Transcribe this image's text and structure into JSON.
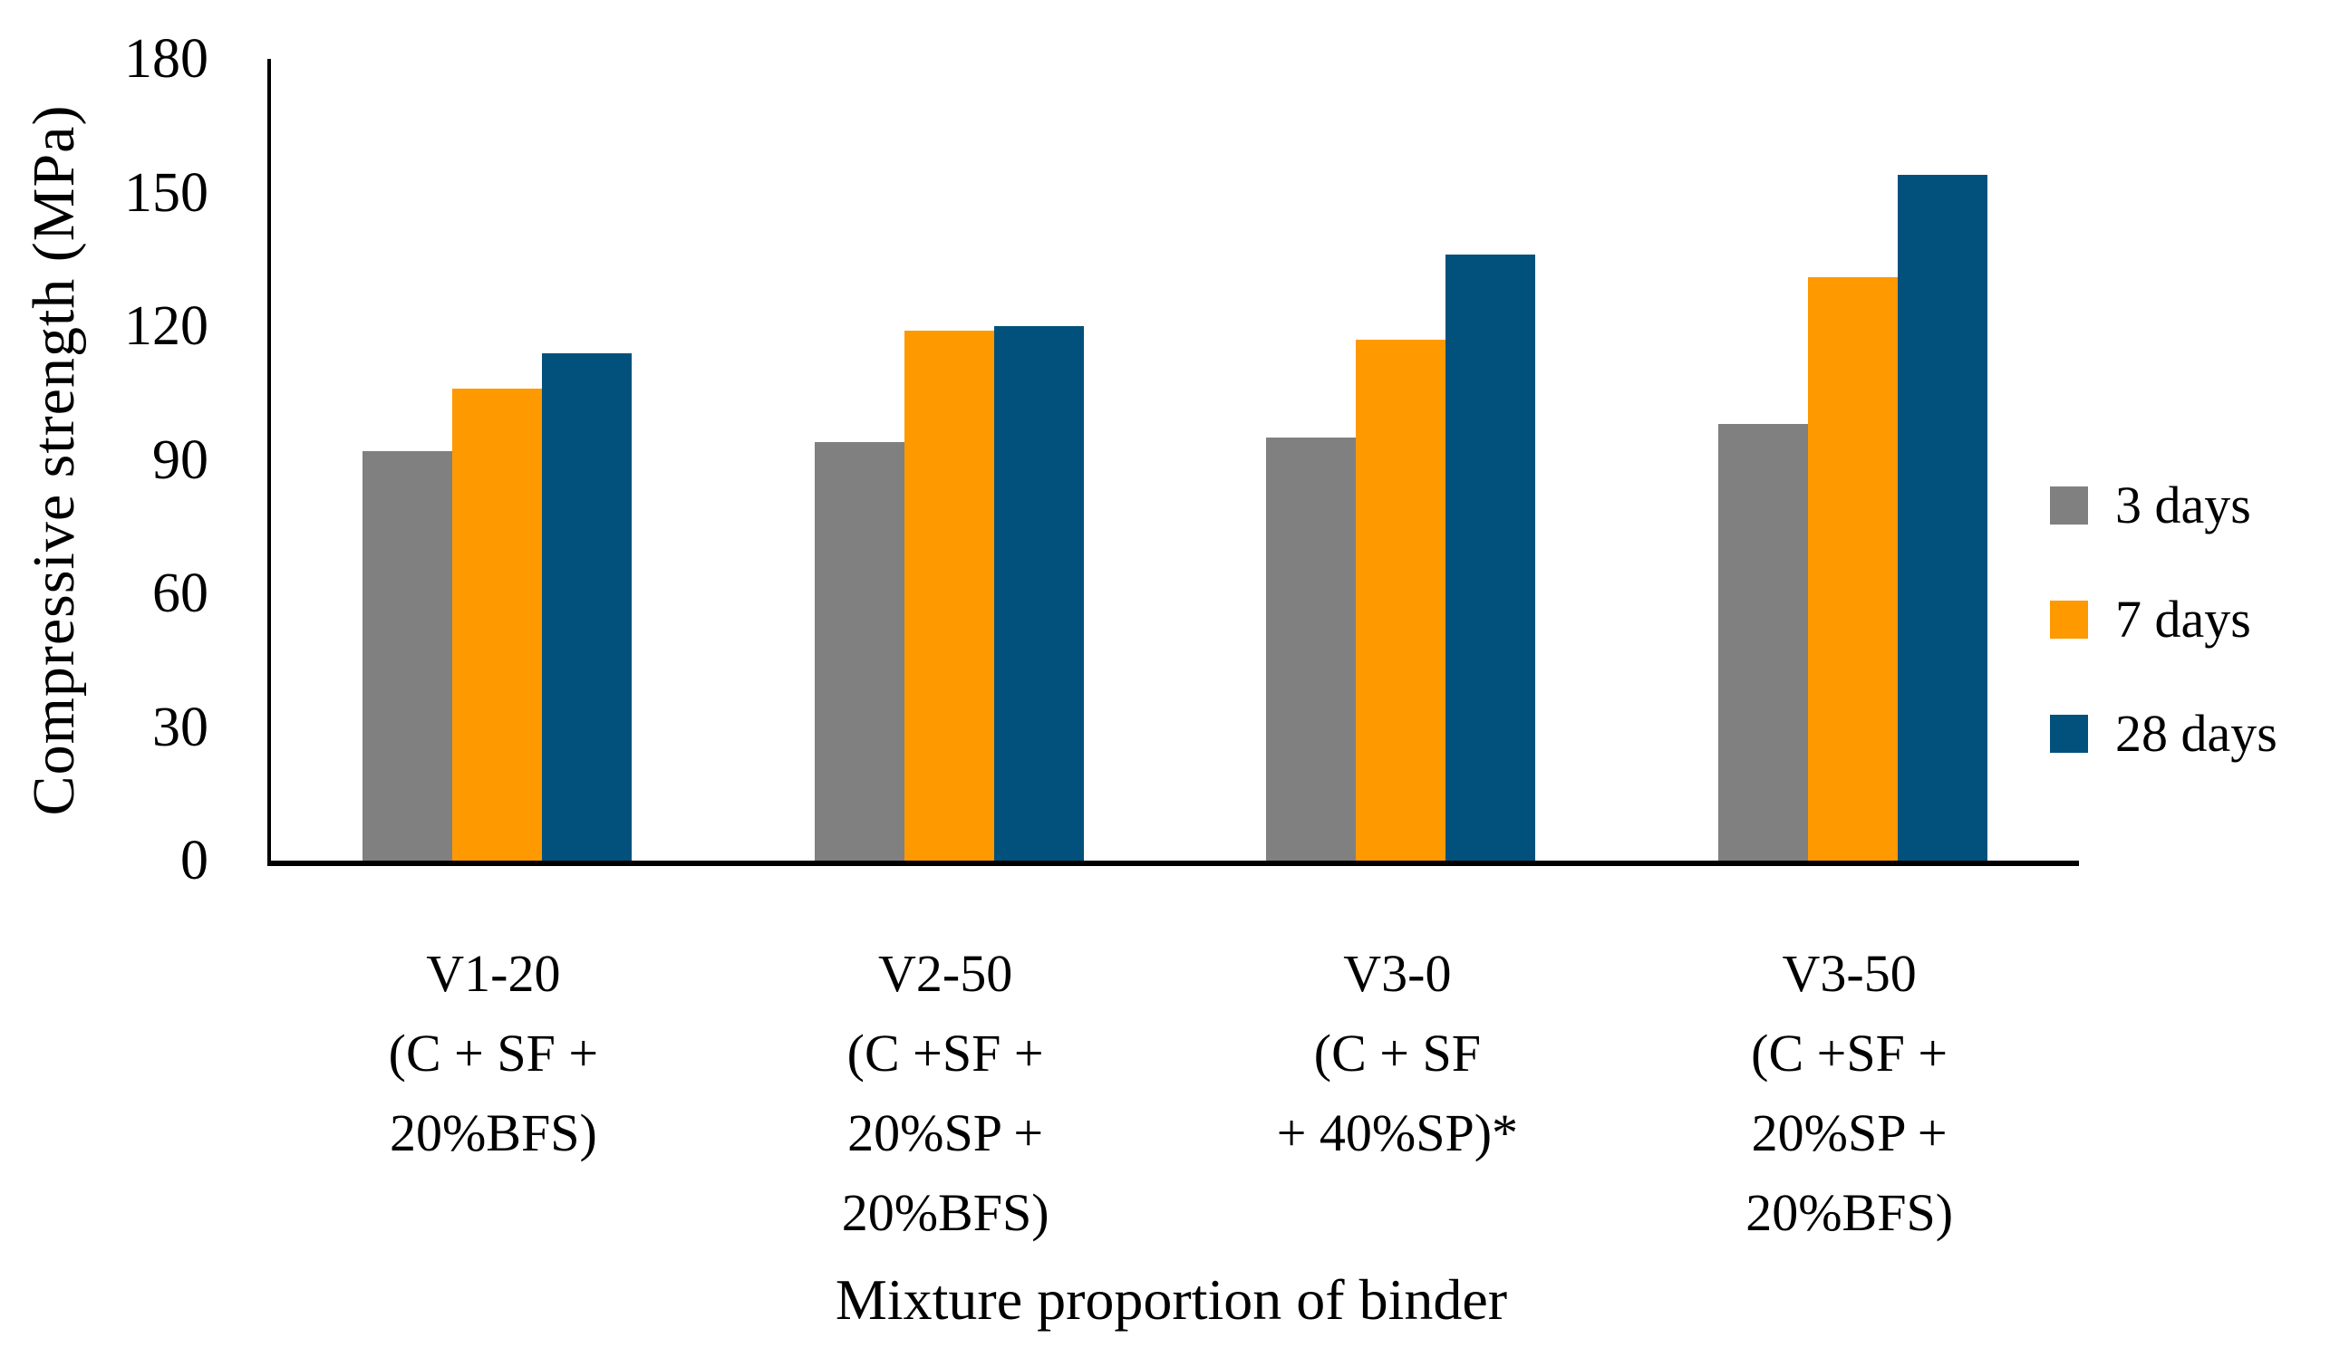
{
  "chart_data": {
    "type": "bar",
    "title": "",
    "ylabel": "Compressive strength (MPa)",
    "xlabel": "Mixture proportion of binder",
    "ylim": [
      0,
      180
    ],
    "yticks": [
      0,
      30,
      60,
      90,
      120,
      150,
      180
    ],
    "grid": false,
    "legend_position": "right",
    "categories": [
      {
        "id": "V1-20",
        "lines": [
          "V1-20",
          "(C + SF +",
          "20%BFS)"
        ]
      },
      {
        "id": "V2-50",
        "lines": [
          "V2-50",
          "(C +SF +",
          "20%SP +",
          "20%BFS)"
        ]
      },
      {
        "id": "V3-0",
        "lines": [
          "V3-0",
          "(C + SF",
          "+ 40%SP)*"
        ]
      },
      {
        "id": "V3-50",
        "lines": [
          "V3-50",
          "(C +SF +",
          "20%SP +",
          "20%BFS)"
        ]
      }
    ],
    "series": [
      {
        "name": "3 days",
        "color": "#808080",
        "values": [
          92,
          94,
          95,
          98
        ]
      },
      {
        "name": "7 days",
        "color": "#FF9900",
        "values": [
          106,
          119,
          117,
          131
        ]
      },
      {
        "name": "28 days",
        "color": "#02517C",
        "values": [
          114,
          120,
          136,
          154
        ]
      }
    ]
  },
  "colors": {
    "axis": "#000000",
    "text": "#000000",
    "background": "#FFFFFF"
  }
}
